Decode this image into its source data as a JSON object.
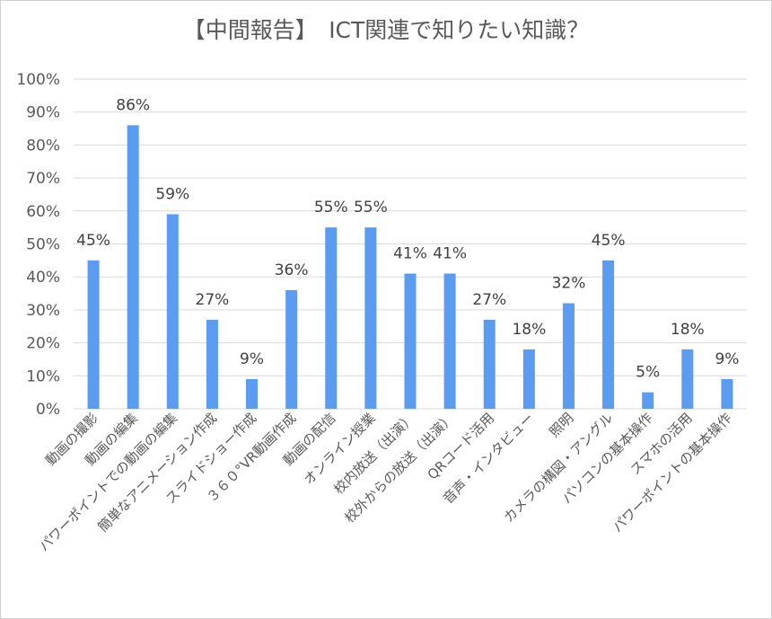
{
  "chart_data": {
    "type": "bar",
    "title": "【中間報告】　ICT関連で知りたい知識？",
    "categories": [
      "動画の撮影",
      "動画の編集",
      "パワーポイントでの動画の編集",
      "簡単なアニメーション作成",
      "スライドショー作成",
      "３６０°VR動画作成",
      "動画の配信",
      "オンライン授業",
      "校内放送（出演）",
      "校外からの放送（出演）",
      "QRコード活用",
      "音声・インタビュー",
      "照明",
      "カメラの構図・アングル",
      "パソコンの基本操作",
      "スマホの活用",
      "パワーポイントの基本操作"
    ],
    "values": [
      45,
      86,
      59,
      27,
      9,
      36,
      55,
      55,
      41,
      41,
      27,
      18,
      32,
      45,
      5,
      18,
      9
    ],
    "data_labels": [
      "45%",
      "86%",
      "59%",
      "27%",
      "9%",
      "36%",
      "55%",
      "55%",
      "41%",
      "41%",
      "27%",
      "18%",
      "32%",
      "45%",
      "5%",
      "18%",
      "9%"
    ],
    "y_ticks": [
      "0%",
      "10%",
      "20%",
      "30%",
      "40%",
      "50%",
      "60%",
      "70%",
      "80%",
      "90%",
      "100%"
    ],
    "ylim": [
      0,
      100
    ],
    "xlabel": "",
    "ylabel": "",
    "grid": true,
    "bar_color": "#5b9bf0",
    "grid_color": "#d9d9d9"
  }
}
